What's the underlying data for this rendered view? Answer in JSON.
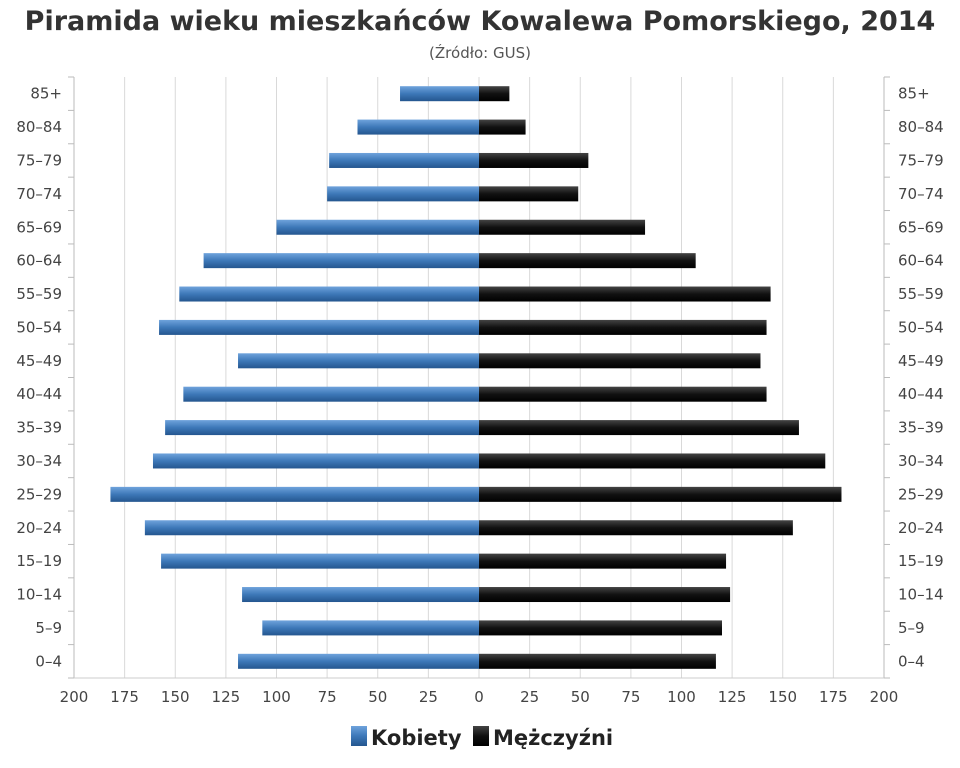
{
  "chart_data": {
    "type": "bar",
    "orientation": "horizontal",
    "layout": "population-pyramid",
    "title": "Piramida wieku mieszkańców Kowalewa Pomorskiego, 2014",
    "subtitle": "(Źródło: GUS)",
    "categories": [
      "85+",
      "80-84",
      "75-79",
      "70-74",
      "65-69",
      "60-64",
      "55-59",
      "50-54",
      "45-49",
      "40-44",
      "35-39",
      "30-34",
      "25-29",
      "20-24",
      "15-19",
      "10-14",
      "5-9",
      "0-4"
    ],
    "series": [
      {
        "name": "Kobiety",
        "side": "left",
        "color": "#3d78b8",
        "values": [
          39,
          60,
          74,
          75,
          100,
          136,
          148,
          158,
          119,
          146,
          155,
          161,
          182,
          165,
          157,
          117,
          107,
          119
        ]
      },
      {
        "name": "Mężczyźni",
        "side": "right",
        "color": "#1a1a1a",
        "values": [
          15,
          23,
          54,
          49,
          82,
          107,
          144,
          142,
          139,
          142,
          158,
          171,
          179,
          155,
          122,
          124,
          120,
          117
        ]
      }
    ],
    "xlim": [
      0,
      200
    ],
    "x_ticks": [
      200,
      175,
      150,
      125,
      100,
      75,
      50,
      25,
      0,
      25,
      50,
      75,
      100,
      125,
      150,
      175,
      200
    ],
    "grid": true,
    "legend_position": "bottom-center",
    "xlabel": "",
    "ylabel": ""
  }
}
